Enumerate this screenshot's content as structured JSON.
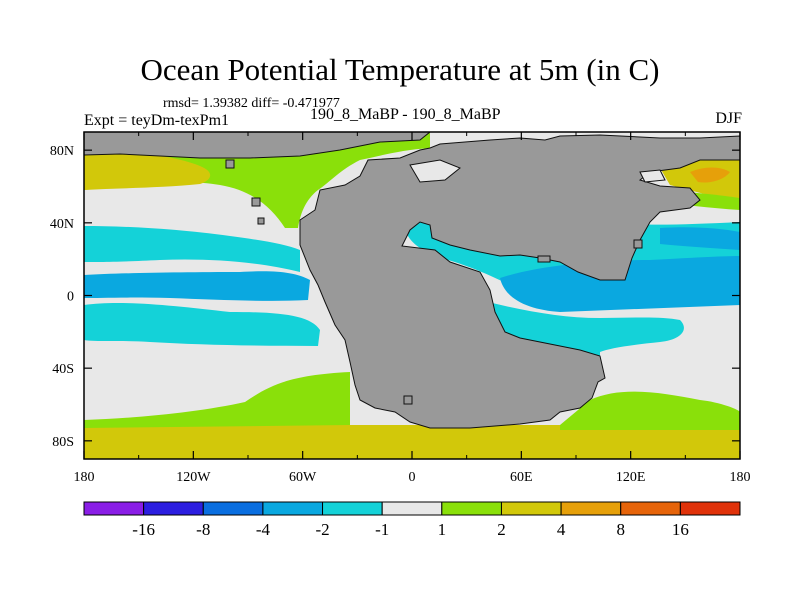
{
  "chart_data": {
    "type": "heatmap",
    "title": "Ocean Potential Temperature at 5m (in C)",
    "stats": "rmsd= 1.39382 diff= -0.471977",
    "left_label": "Expt = teyDm-texPm1",
    "center_label": "190_8_MaBP - 190_8_MaBP",
    "right_label": "DJF",
    "x_ticks": [
      "180",
      "120W",
      "60W",
      "0",
      "60E",
      "120E",
      "180"
    ],
    "y_ticks": [
      "80N",
      "40N",
      "0",
      "40S",
      "80S"
    ],
    "xlim": [
      -180,
      180
    ],
    "ylim": [
      -90,
      90
    ],
    "colorbar": {
      "labels": [
        "-16",
        "-8",
        "-4",
        "-2",
        "-1",
        "1",
        "2",
        "4",
        "8",
        "16"
      ],
      "colors": [
        "#8a1ee6",
        "#2c1ee0",
        "#0a6ee0",
        "#0aa8e0",
        "#14d2d8",
        "#e8e8e8",
        "#8ae00a",
        "#d2c80a",
        "#e6a00a",
        "#e6640a",
        "#e0320a"
      ]
    },
    "land_color": "#999999"
  }
}
